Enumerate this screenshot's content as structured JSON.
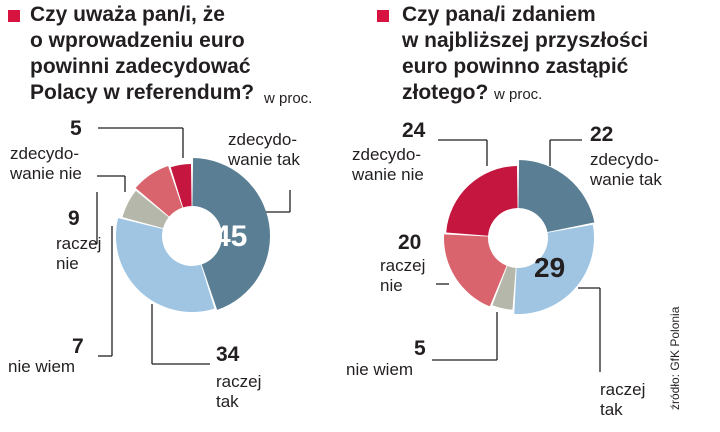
{
  "source": "źródło: GfK Polonia",
  "colors": {
    "accent": "#d7143f",
    "zdecydowanie_nie": "#c4163e",
    "raczej_nie": "#d9646d",
    "nie_wiem": "#b4b7a9",
    "raczej_tak": "#9fc5e3",
    "zdecydowanie_tak": "#5a7f94"
  },
  "chart_data": [
    {
      "type": "pie",
      "title": "Czy uważa pan/i, że\no wprowadzeniu euro\npowinni zadecydować\nPolacy w referendum?",
      "unit": "w proc.",
      "slices": [
        {
          "label": "zdecydo-\nwanie  tak",
          "value": 45,
          "value_label": "45",
          "color": "#5a7f94"
        },
        {
          "label": "raczej\ntak",
          "value": 34,
          "value_label": "34",
          "color": "#9fc5e3"
        },
        {
          "label": "nie wiem",
          "value": 7,
          "value_label": "7",
          "color": "#b4b7a9"
        },
        {
          "label": "raczej\nnie",
          "value": 9,
          "value_label": "9",
          "color": "#d9646d"
        },
        {
          "label": "zdecydo-\nwanie nie",
          "value": 5,
          "value_label": "5",
          "color": "#c4163e"
        }
      ]
    },
    {
      "type": "pie",
      "title": "Czy pana/i zdaniem\nw najbliższej przyszłości\neuro powinno zastąpić\nzłotego?",
      "unit": "w proc.",
      "slices": [
        {
          "label": "zdecydo-\nwanie  tak",
          "value": 22,
          "value_label": "22",
          "color": "#5a7f94"
        },
        {
          "label": "raczej\ntak",
          "value": 29,
          "value_label": "29",
          "color": "#9fc5e3"
        },
        {
          "label": "nie wiem",
          "value": 5,
          "value_label": "5",
          "color": "#b4b7a9"
        },
        {
          "label": "raczej\nnie",
          "value": 20,
          "value_label": "20",
          "color": "#d9646d"
        },
        {
          "label": "zdecydo-\nwanie nie",
          "value": 24,
          "value_label": "24",
          "color": "#c4163e"
        }
      ]
    }
  ]
}
